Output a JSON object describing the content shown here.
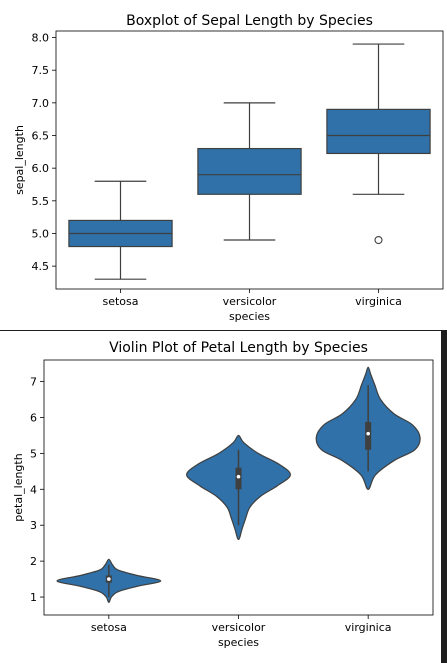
{
  "chart_data": [
    {
      "type": "box",
      "title": "Boxplot of Sepal Length by Species",
      "xlabel": "species",
      "ylabel": "sepal_length",
      "ylim": [
        4.15,
        8.1
      ],
      "yticks": [
        "4.5",
        "5.0",
        "5.5",
        "6.0",
        "6.5",
        "7.0",
        "7.5",
        "8.0"
      ],
      "categories": [
        "setosa",
        "versicolor",
        "virginica"
      ],
      "color": "#2f71a8",
      "series": [
        {
          "category": "setosa",
          "whisker_low": 4.3,
          "q1": 4.8,
          "median": 5.0,
          "q3": 5.2,
          "whisker_high": 5.8,
          "outliers": []
        },
        {
          "category": "versicolor",
          "whisker_low": 4.9,
          "q1": 5.6,
          "median": 5.9,
          "q3": 6.3,
          "whisker_high": 7.0,
          "outliers": []
        },
        {
          "category": "virginica",
          "whisker_low": 5.6,
          "q1": 6.225,
          "median": 6.5,
          "q3": 6.9,
          "whisker_high": 7.9,
          "outliers": [
            4.9
          ]
        }
      ]
    },
    {
      "type": "violin",
      "title": "Violin Plot of Petal Length by Species",
      "xlabel": "species",
      "ylabel": "petal_length",
      "ylim": [
        0.5,
        7.6
      ],
      "yticks": [
        "1",
        "2",
        "3",
        "4",
        "5",
        "6",
        "7"
      ],
      "categories": [
        "setosa",
        "versicolor",
        "virginica"
      ],
      "color": "#2f71a8",
      "series": [
        {
          "category": "setosa",
          "min": 1.0,
          "q1": 1.4,
          "median": 1.5,
          "q3": 1.6,
          "max": 1.9,
          "density": [
            [
              0.85,
              0.0
            ],
            [
              1.0,
              0.05
            ],
            [
              1.15,
              0.18
            ],
            [
              1.3,
              0.55
            ],
            [
              1.45,
              1.0
            ],
            [
              1.6,
              0.55
            ],
            [
              1.75,
              0.18
            ],
            [
              1.9,
              0.07
            ],
            [
              2.05,
              0.0
            ]
          ]
        },
        {
          "category": "versicolor",
          "min": 3.0,
          "q1": 4.0,
          "median": 4.35,
          "q3": 4.6,
          "max": 5.1,
          "density": [
            [
              2.6,
              0.0
            ],
            [
              2.9,
              0.07
            ],
            [
              3.2,
              0.14
            ],
            [
              3.5,
              0.22
            ],
            [
              3.8,
              0.42
            ],
            [
              4.1,
              0.75
            ],
            [
              4.4,
              1.0
            ],
            [
              4.7,
              0.78
            ],
            [
              5.0,
              0.38
            ],
            [
              5.3,
              0.1
            ],
            [
              5.5,
              0.0
            ]
          ]
        },
        {
          "category": "virginica",
          "min": 4.5,
          "q1": 5.1,
          "median": 5.55,
          "q3": 5.875,
          "max": 6.9,
          "density": [
            [
              4.0,
              0.0
            ],
            [
              4.4,
              0.14
            ],
            [
              4.8,
              0.5
            ],
            [
              5.1,
              0.9
            ],
            [
              5.45,
              1.0
            ],
            [
              5.8,
              0.85
            ],
            [
              6.1,
              0.5
            ],
            [
              6.5,
              0.24
            ],
            [
              6.9,
              0.13
            ],
            [
              7.2,
              0.05
            ],
            [
              7.4,
              0.0
            ]
          ]
        }
      ]
    }
  ]
}
